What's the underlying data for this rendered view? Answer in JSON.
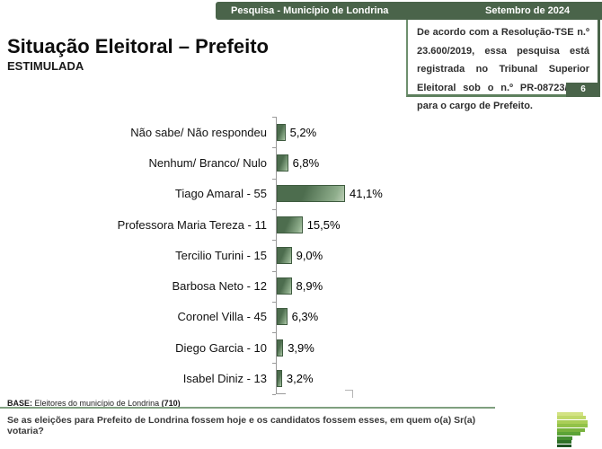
{
  "header": {
    "bar_left": "Pesquisa - Município de Londrina",
    "bar_right": "Setembro de 2024",
    "title": "Situação Eleitoral – Prefeito",
    "subtitle": "ESTIMULADA",
    "registration_text": "De acordo com a Resolução-TSE n.º 23.600/2019, essa pesquisa está registrada no Tribunal Superior Eleitoral sob o n.º PR-08723/2024 para o cargo de Prefeito.",
    "page_number": "6"
  },
  "chart_data": {
    "type": "bar",
    "orientation": "horizontal",
    "title": "Situação Eleitoral – Prefeito (Estimulada)",
    "categories": [
      "Não sabe/ Não respondeu",
      "Nenhum/ Branco/ Nulo",
      "Tiago Amaral - 55",
      "Professora Maria Tereza - 11",
      "Tercilio Turini - 15",
      "Barbosa Neto - 12",
      "Coronel Villa - 45",
      "Diego Garcia - 10",
      "Isabel Diniz - 13"
    ],
    "values": [
      5.2,
      6.8,
      41.1,
      15.5,
      9.0,
      8.9,
      6.3,
      3.9,
      3.2
    ],
    "value_labels": [
      "5,2%",
      "6,8%",
      "41,1%",
      "15,5%",
      "9,0%",
      "8,9%",
      "6,3%",
      "3,9%",
      "3,2%"
    ],
    "unit": "%",
    "xlim": [
      0,
      45
    ],
    "grid": false,
    "legend": false,
    "data_labels_position": "right of bar end",
    "bar_color_dark": "#4d6d4e",
    "bar_color_light": "#bccfb6",
    "bar_border_color": "#3f5c40",
    "axis_color": "#9a9a9a"
  },
  "footer": {
    "base_prefix": "BASE:",
    "base_text": " Eleitores do município de Londrina ",
    "base_count": "(710)",
    "question": "Se as eleições para Prefeito de Londrina fossem hoje e os candidatos fossem esses, em quem o(a) Sr(a) votaria?"
  },
  "logo": {
    "name": "stacked-bars-p-logo",
    "bars": [
      {
        "w": 29,
        "color": "#d3e283"
      },
      {
        "w": 32,
        "color": "#c0d96a"
      },
      {
        "w": 34,
        "color": "#aace57"
      },
      {
        "w": 34,
        "color": "#92c248"
      },
      {
        "w": 31,
        "color": "#77b23d"
      },
      {
        "w": 26,
        "color": "#5ca336"
      },
      {
        "w": 17,
        "color": "#438d2f"
      },
      {
        "w": 16,
        "color": "#2f7129"
      },
      {
        "w": 16,
        "color": "#1d5222"
      }
    ]
  },
  "colors": {
    "header_green": "#4a644a",
    "frame_green": "#6e8f6e",
    "rule_green": "#7fa07f",
    "badge_green": "#4a644a"
  }
}
